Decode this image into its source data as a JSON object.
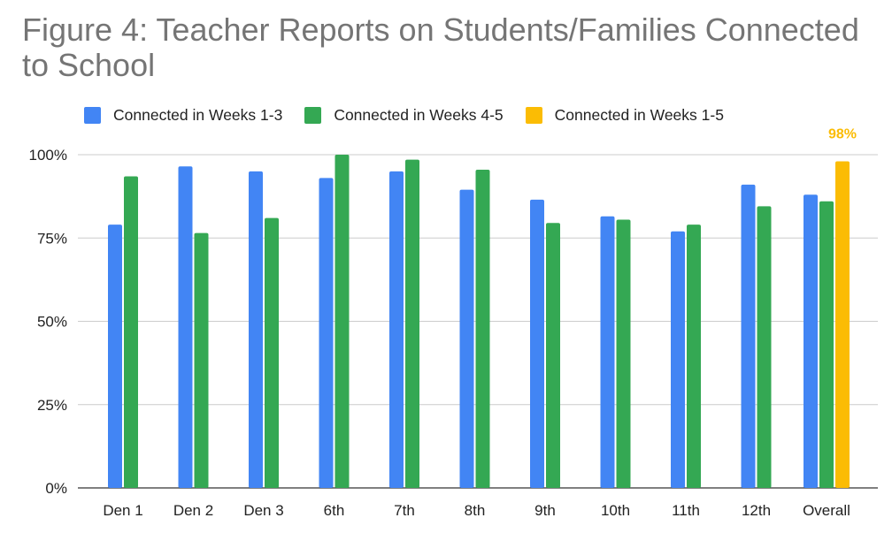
{
  "chart_data": {
    "type": "bar",
    "title": "Figure 4: Teacher Reports on Students/Families Connected to School",
    "xlabel": "",
    "ylabel": "",
    "ylim": [
      0,
      100
    ],
    "yticks": [
      "0%",
      "25%",
      "50%",
      "75%",
      "100%"
    ],
    "categories": [
      "Den 1",
      "Den 2",
      "Den 3",
      "6th",
      "7th",
      "8th",
      "9th",
      "10th",
      "11th",
      "12th",
      "Overall"
    ],
    "series": [
      {
        "name": "Connected in Weeks 1-3",
        "color": "#4285F4",
        "values": [
          79,
          96.5,
          95,
          93,
          95,
          89.5,
          86.5,
          81.5,
          77,
          91,
          88
        ]
      },
      {
        "name": "Connected in Weeks 4-5",
        "color": "#34A853",
        "values": [
          93.5,
          76.5,
          81,
          100,
          98.5,
          95.5,
          79.5,
          80.5,
          79,
          84.5,
          86
        ]
      },
      {
        "name": "Connected in Weeks 1-5",
        "color": "#FBBC04",
        "values": [
          null,
          null,
          null,
          null,
          null,
          null,
          null,
          null,
          null,
          null,
          98
        ]
      }
    ],
    "data_labels": [
      {
        "series": 2,
        "category": "Overall",
        "text": "98%",
        "color": "#FBBC04"
      }
    ],
    "grid": true,
    "legend_position": "top-left"
  }
}
